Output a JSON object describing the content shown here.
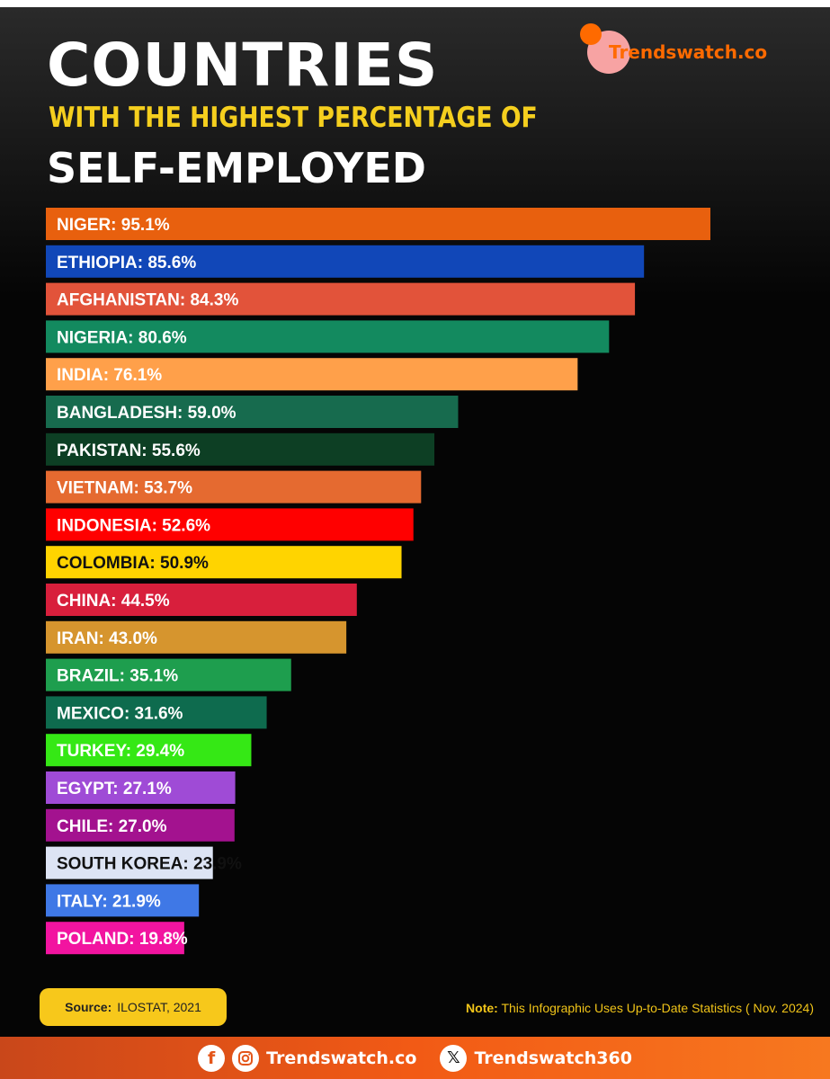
{
  "header": {
    "title": "COUNTRIES",
    "subtitle": "WITH THE HIGHEST PERCENTAGE OF",
    "title_line2": "SELF-EMPLOYED"
  },
  "brand": {
    "name": "Trendswatch.co",
    "accent": "#ff6a00"
  },
  "chart_data": {
    "type": "bar",
    "orientation": "horizontal",
    "unit": "%",
    "title": "COUNTRIES WITH THE HIGHEST PERCENTAGE OF SELF-EMPLOYED",
    "categories": [
      "NIGER",
      "ETHIOPIA",
      "AFGHANISTAN",
      "NIGERIA",
      "INDIA",
      "BANGLADESH",
      "PAKISTAN",
      "VIETNAM",
      "INDONESIA",
      "COLOMBIA",
      "CHINA",
      "IRAN",
      "BRAZIL",
      "MEXICO",
      "TURKEY",
      "EGYPT",
      "CHILE",
      "SOUTH KOREA",
      "ITALY",
      "POLAND"
    ],
    "values": [
      95.1,
      85.6,
      84.3,
      80.6,
      76.1,
      59.0,
      55.6,
      53.7,
      52.6,
      50.9,
      44.5,
      43.0,
      35.1,
      31.6,
      29.4,
      27.1,
      27.0,
      23.9,
      21.9,
      19.8
    ],
    "labels": [
      "NIGER: 95.1%",
      "ETHIOPIA: 85.6%",
      "AFGHANISTAN: 84.3%",
      "NIGERIA: 80.6%",
      "INDIA: 76.1%",
      "BANGLADESH: 59.0%",
      "PAKISTAN: 55.6%",
      "VIETNAM: 53.7%",
      "INDONESIA: 52.6%",
      "COLOMBIA: 50.9%",
      "CHINA: 44.5%",
      "IRAN: 43.0%",
      "BRAZIL: 35.1%",
      "MEXICO: 31.6%",
      "TURKEY: 29.4%",
      "EGYPT: 27.1%",
      "CHILE: 27.0%",
      "SOUTH KOREA: 23.9%",
      "ITALY: 21.9%",
      "POLAND: 19.8%"
    ],
    "colors": [
      "#e8600e",
      "#1147b8",
      "#e2533a",
      "#138a5f",
      "#ffa04a",
      "#176b4e",
      "#0d3f24",
      "#e56a30",
      "#ff0000",
      "#ffd400",
      "#d81f3c",
      "#d6952e",
      "#1e9e4e",
      "#0e6b4e",
      "#35e815",
      "#9f4bd6",
      "#a3128f",
      "#dde4f4",
      "#3f78e6",
      "#f214a0"
    ],
    "label_colors": [
      "#ffffff",
      "#ffffff",
      "#ffffff",
      "#ffffff",
      "#ffffff",
      "#ffffff",
      "#ffffff",
      "#ffffff",
      "#ffffff",
      "#111111",
      "#ffffff",
      "#ffffff",
      "#ffffff",
      "#ffffff",
      "#ffffff",
      "#ffffff",
      "#ffffff",
      "#111111",
      "#ffffff",
      "#ffffff"
    ],
    "xlim": [
      0,
      100
    ],
    "grid": false,
    "legend": "none"
  },
  "source": {
    "label": "Source:",
    "value": "ILOSTAT, 2021"
  },
  "note": {
    "label": "Note:",
    "text": "This Infographic Uses Up-to-Date Statistics ( Nov. 2024)"
  },
  "footer": {
    "facebook_glyph": "f",
    "site": "Trendswatch.co",
    "x_glyph": "𝕏",
    "x_handle": "Trendswatch360"
  }
}
